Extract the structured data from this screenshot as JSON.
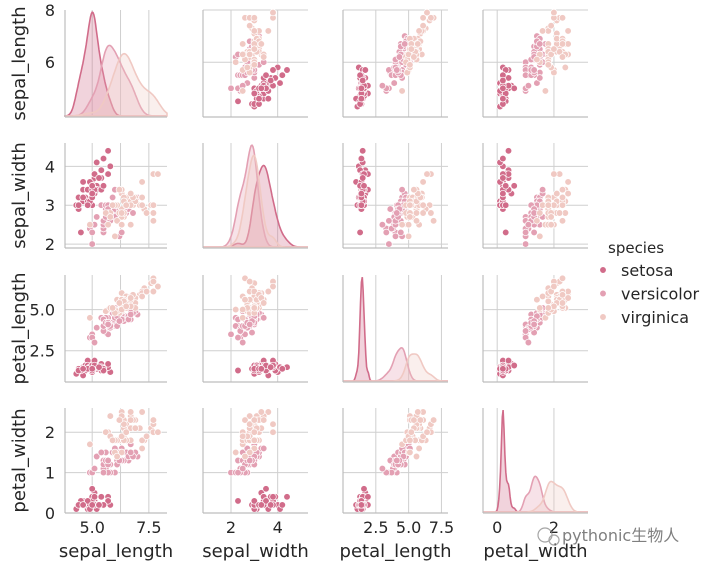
{
  "chart_data": {
    "type": "pairplot",
    "variables": [
      "sepal_length",
      "sepal_width",
      "petal_length",
      "petal_width"
    ],
    "variable_labels": [
      "sepal_length",
      "sepal_width",
      "petal_length",
      "petal_width"
    ],
    "legend": {
      "title": "species",
      "placement": "right",
      "entries": [
        {
          "name": "setosa",
          "color": "#D16C8A"
        },
        {
          "name": "versicolor",
          "color": "#E3A0B3"
        },
        {
          "name": "virginica",
          "color": "#F0C9C3"
        }
      ]
    },
    "axes": {
      "sepal_length": {
        "lim": [
          3.8,
          8.3
        ],
        "ticks": [
          5.0,
          6.25,
          7.5
        ],
        "tick_labels": [
          "5.0",
          "",
          "7.5"
        ],
        "y_ticks": [
          6,
          8
        ],
        "y_tick_labels": [
          "6",
          "8"
        ],
        "y_lim": [
          3.9,
          8.0
        ]
      },
      "sepal_width": {
        "lim": [
          0.8,
          5.3
        ],
        "ticks": [
          2,
          4
        ],
        "tick_labels": [
          "2",
          "4"
        ],
        "y_ticks": [
          2,
          3,
          4
        ],
        "y_tick_labels": [
          "2",
          "3",
          "4"
        ],
        "y_lim": [
          1.9,
          4.6
        ]
      },
      "petal_length": {
        "lim": [
          0.0,
          8.0
        ],
        "ticks": [
          2.5,
          5.0,
          7.5
        ],
        "tick_labels": [
          "2.5",
          "5.0",
          "7.5"
        ],
        "y_ticks": [
          2.5,
          5.0
        ],
        "y_tick_labels": [
          "2.5",
          "5.0"
        ],
        "y_lim": [
          0.6,
          7.1
        ]
      },
      "petal_width": {
        "lim": [
          -0.5,
          3.2
        ],
        "ticks": [
          0,
          2
        ],
        "tick_labels": [
          "0",
          "2"
        ],
        "y_ticks": [
          0,
          1,
          2
        ],
        "y_tick_labels": [
          "0",
          "1",
          "2"
        ],
        "y_lim": [
          0.0,
          2.6
        ]
      }
    },
    "density_peaks": {
      "sepal_length": [
        [
          5.0,
          1.0
        ],
        [
          5.9,
          0.68
        ],
        [
          6.5,
          0.6
        ]
      ],
      "sepal_width": [
        [
          3.4,
          0.8
        ],
        [
          2.8,
          1.0
        ],
        [
          3.0,
          0.9
        ]
      ],
      "petal_length": [
        [
          1.5,
          1.0
        ],
        [
          4.3,
          0.32
        ],
        [
          5.5,
          0.26
        ]
      ],
      "petal_width": [
        [
          0.25,
          1.0
        ],
        [
          1.3,
          0.35
        ],
        [
          2.0,
          0.3
        ]
      ]
    },
    "samples": {
      "setosa": [
        [
          5.1,
          3.5,
          1.4,
          0.2
        ],
        [
          4.9,
          3.0,
          1.4,
          0.2
        ],
        [
          4.7,
          3.2,
          1.3,
          0.2
        ],
        [
          4.6,
          3.1,
          1.5,
          0.2
        ],
        [
          5.0,
          3.6,
          1.4,
          0.2
        ],
        [
          5.4,
          3.9,
          1.7,
          0.4
        ],
        [
          4.6,
          3.4,
          1.4,
          0.3
        ],
        [
          5.0,
          3.4,
          1.5,
          0.2
        ],
        [
          4.4,
          2.9,
          1.4,
          0.2
        ],
        [
          4.9,
          3.1,
          1.5,
          0.1
        ],
        [
          5.4,
          3.7,
          1.5,
          0.2
        ],
        [
          4.8,
          3.4,
          1.6,
          0.2
        ],
        [
          4.8,
          3.0,
          1.4,
          0.1
        ],
        [
          4.3,
          3.0,
          1.1,
          0.1
        ],
        [
          5.8,
          4.0,
          1.2,
          0.2
        ],
        [
          5.7,
          4.4,
          1.5,
          0.4
        ],
        [
          5.4,
          3.9,
          1.3,
          0.4
        ],
        [
          5.1,
          3.5,
          1.4,
          0.3
        ],
        [
          5.7,
          3.8,
          1.7,
          0.3
        ],
        [
          5.1,
          3.8,
          1.5,
          0.3
        ],
        [
          5.4,
          3.4,
          1.7,
          0.2
        ],
        [
          5.1,
          3.7,
          1.5,
          0.4
        ],
        [
          4.6,
          3.6,
          1.0,
          0.2
        ],
        [
          5.1,
          3.3,
          1.7,
          0.5
        ],
        [
          4.8,
          3.4,
          1.9,
          0.2
        ],
        [
          5.0,
          3.0,
          1.6,
          0.2
        ],
        [
          5.0,
          3.4,
          1.6,
          0.4
        ],
        [
          5.2,
          3.5,
          1.5,
          0.2
        ],
        [
          5.2,
          3.4,
          1.4,
          0.2
        ],
        [
          4.7,
          3.2,
          1.6,
          0.2
        ],
        [
          4.8,
          3.1,
          1.6,
          0.2
        ],
        [
          5.4,
          3.4,
          1.5,
          0.4
        ],
        [
          5.2,
          4.1,
          1.5,
          0.1
        ],
        [
          5.5,
          4.2,
          1.4,
          0.2
        ],
        [
          4.9,
          3.1,
          1.5,
          0.2
        ],
        [
          5.0,
          3.2,
          1.2,
          0.2
        ],
        [
          5.5,
          3.5,
          1.3,
          0.2
        ],
        [
          4.9,
          3.6,
          1.4,
          0.1
        ],
        [
          4.4,
          3.0,
          1.3,
          0.2
        ],
        [
          5.1,
          3.4,
          1.5,
          0.2
        ],
        [
          5.0,
          3.5,
          1.3,
          0.3
        ],
        [
          4.5,
          2.3,
          1.3,
          0.3
        ],
        [
          4.4,
          3.2,
          1.3,
          0.2
        ],
        [
          5.0,
          3.5,
          1.6,
          0.6
        ],
        [
          5.1,
          3.8,
          1.9,
          0.4
        ],
        [
          4.8,
          3.0,
          1.4,
          0.3
        ],
        [
          5.1,
          3.8,
          1.6,
          0.2
        ],
        [
          4.6,
          3.2,
          1.4,
          0.2
        ],
        [
          5.3,
          3.7,
          1.5,
          0.2
        ],
        [
          5.0,
          3.3,
          1.4,
          0.2
        ]
      ],
      "versicolor": [
        [
          7.0,
          3.2,
          4.7,
          1.4
        ],
        [
          6.4,
          3.2,
          4.5,
          1.5
        ],
        [
          6.9,
          3.1,
          4.9,
          1.5
        ],
        [
          5.5,
          2.3,
          4.0,
          1.3
        ],
        [
          6.5,
          2.8,
          4.6,
          1.5
        ],
        [
          5.7,
          2.8,
          4.5,
          1.3
        ],
        [
          6.3,
          3.3,
          4.7,
          1.6
        ],
        [
          4.9,
          2.4,
          3.3,
          1.0
        ],
        [
          6.6,
          2.9,
          4.6,
          1.3
        ],
        [
          5.2,
          2.7,
          3.9,
          1.4
        ],
        [
          5.0,
          2.0,
          3.5,
          1.0
        ],
        [
          5.9,
          3.0,
          4.2,
          1.5
        ],
        [
          6.0,
          2.2,
          4.0,
          1.0
        ],
        [
          6.1,
          2.9,
          4.7,
          1.4
        ],
        [
          5.6,
          2.9,
          3.6,
          1.3
        ],
        [
          6.7,
          3.1,
          4.4,
          1.4
        ],
        [
          5.6,
          3.0,
          4.5,
          1.5
        ],
        [
          5.8,
          2.7,
          4.1,
          1.0
        ],
        [
          6.2,
          2.2,
          4.5,
          1.5
        ],
        [
          5.6,
          2.5,
          3.9,
          1.1
        ],
        [
          5.9,
          3.2,
          4.8,
          1.8
        ],
        [
          6.1,
          2.8,
          4.0,
          1.3
        ],
        [
          6.3,
          2.5,
          4.9,
          1.5
        ],
        [
          6.1,
          2.8,
          4.7,
          1.2
        ],
        [
          6.4,
          2.9,
          4.3,
          1.3
        ],
        [
          6.6,
          3.0,
          4.4,
          1.4
        ],
        [
          6.8,
          2.8,
          4.8,
          1.4
        ],
        [
          6.7,
          3.0,
          5.0,
          1.7
        ],
        [
          6.0,
          2.9,
          4.5,
          1.5
        ],
        [
          5.7,
          2.6,
          3.5,
          1.0
        ],
        [
          5.5,
          2.4,
          3.8,
          1.1
        ],
        [
          5.5,
          2.4,
          3.7,
          1.0
        ],
        [
          5.8,
          2.7,
          3.9,
          1.2
        ],
        [
          6.0,
          2.7,
          5.1,
          1.6
        ],
        [
          5.4,
          3.0,
          4.5,
          1.5
        ],
        [
          6.0,
          3.4,
          4.5,
          1.6
        ],
        [
          6.7,
          3.1,
          4.7,
          1.5
        ],
        [
          6.3,
          2.3,
          4.4,
          1.3
        ],
        [
          5.6,
          3.0,
          4.1,
          1.3
        ],
        [
          5.5,
          2.5,
          4.0,
          1.3
        ],
        [
          5.5,
          2.6,
          4.4,
          1.2
        ],
        [
          6.1,
          3.0,
          4.6,
          1.4
        ],
        [
          5.8,
          2.6,
          4.0,
          1.2
        ],
        [
          5.0,
          2.3,
          3.3,
          1.0
        ],
        [
          5.6,
          2.7,
          4.2,
          1.3
        ],
        [
          5.7,
          3.0,
          4.2,
          1.2
        ],
        [
          5.7,
          2.9,
          4.2,
          1.3
        ],
        [
          6.2,
          2.9,
          4.3,
          1.3
        ],
        [
          5.1,
          2.5,
          3.0,
          1.1
        ],
        [
          5.7,
          2.8,
          4.1,
          1.3
        ]
      ],
      "virginica": [
        [
          6.3,
          3.3,
          6.0,
          2.5
        ],
        [
          5.8,
          2.7,
          5.1,
          1.9
        ],
        [
          7.1,
          3.0,
          5.9,
          2.1
        ],
        [
          6.3,
          2.9,
          5.6,
          1.8
        ],
        [
          6.5,
          3.0,
          5.8,
          2.2
        ],
        [
          7.6,
          3.0,
          6.6,
          2.1
        ],
        [
          4.9,
          2.5,
          4.5,
          1.7
        ],
        [
          7.3,
          2.9,
          6.3,
          1.8
        ],
        [
          6.7,
          2.5,
          5.8,
          1.8
        ],
        [
          7.2,
          3.6,
          6.1,
          2.5
        ],
        [
          6.5,
          3.2,
          5.1,
          2.0
        ],
        [
          6.4,
          2.7,
          5.3,
          1.9
        ],
        [
          6.8,
          3.0,
          5.5,
          2.1
        ],
        [
          5.7,
          2.5,
          5.0,
          2.0
        ],
        [
          5.8,
          2.8,
          5.1,
          2.4
        ],
        [
          6.4,
          3.2,
          5.3,
          2.3
        ],
        [
          6.5,
          3.0,
          5.5,
          1.8
        ],
        [
          7.7,
          3.8,
          6.7,
          2.2
        ],
        [
          7.7,
          2.6,
          6.9,
          2.3
        ],
        [
          6.0,
          2.2,
          5.0,
          1.5
        ],
        [
          6.9,
          3.2,
          5.7,
          2.3
        ],
        [
          5.6,
          2.8,
          4.9,
          2.0
        ],
        [
          7.7,
          2.8,
          6.7,
          2.0
        ],
        [
          6.3,
          2.7,
          4.9,
          1.8
        ],
        [
          6.7,
          3.3,
          5.7,
          2.1
        ],
        [
          7.2,
          3.2,
          6.0,
          1.8
        ],
        [
          6.2,
          2.8,
          4.8,
          1.8
        ],
        [
          6.1,
          3.0,
          4.9,
          1.8
        ],
        [
          6.4,
          2.8,
          5.6,
          2.1
        ],
        [
          7.2,
          3.0,
          5.8,
          1.6
        ],
        [
          7.4,
          2.8,
          6.1,
          1.9
        ],
        [
          7.9,
          3.8,
          6.4,
          2.0
        ],
        [
          6.4,
          2.8,
          5.6,
          2.2
        ],
        [
          6.3,
          2.8,
          5.1,
          1.5
        ],
        [
          6.1,
          2.6,
          5.6,
          1.4
        ],
        [
          7.7,
          3.0,
          6.1,
          2.3
        ],
        [
          6.3,
          3.4,
          5.6,
          2.4
        ],
        [
          6.4,
          3.1,
          5.5,
          1.8
        ],
        [
          6.0,
          3.0,
          4.8,
          1.8
        ],
        [
          6.9,
          3.1,
          5.4,
          2.1
        ],
        [
          6.7,
          3.1,
          5.6,
          2.4
        ],
        [
          6.9,
          3.1,
          5.1,
          2.3
        ],
        [
          5.8,
          2.7,
          5.1,
          1.9
        ],
        [
          6.8,
          3.2,
          5.9,
          2.3
        ],
        [
          6.7,
          3.3,
          5.7,
          2.5
        ],
        [
          6.7,
          3.0,
          5.2,
          2.3
        ],
        [
          6.3,
          2.5,
          5.0,
          1.9
        ],
        [
          6.5,
          3.0,
          5.2,
          2.0
        ],
        [
          6.2,
          3.4,
          5.4,
          2.3
        ],
        [
          5.9,
          3.0,
          5.1,
          1.8
        ]
      ]
    }
  },
  "watermark": {
    "text": "pythonic生物人"
  }
}
